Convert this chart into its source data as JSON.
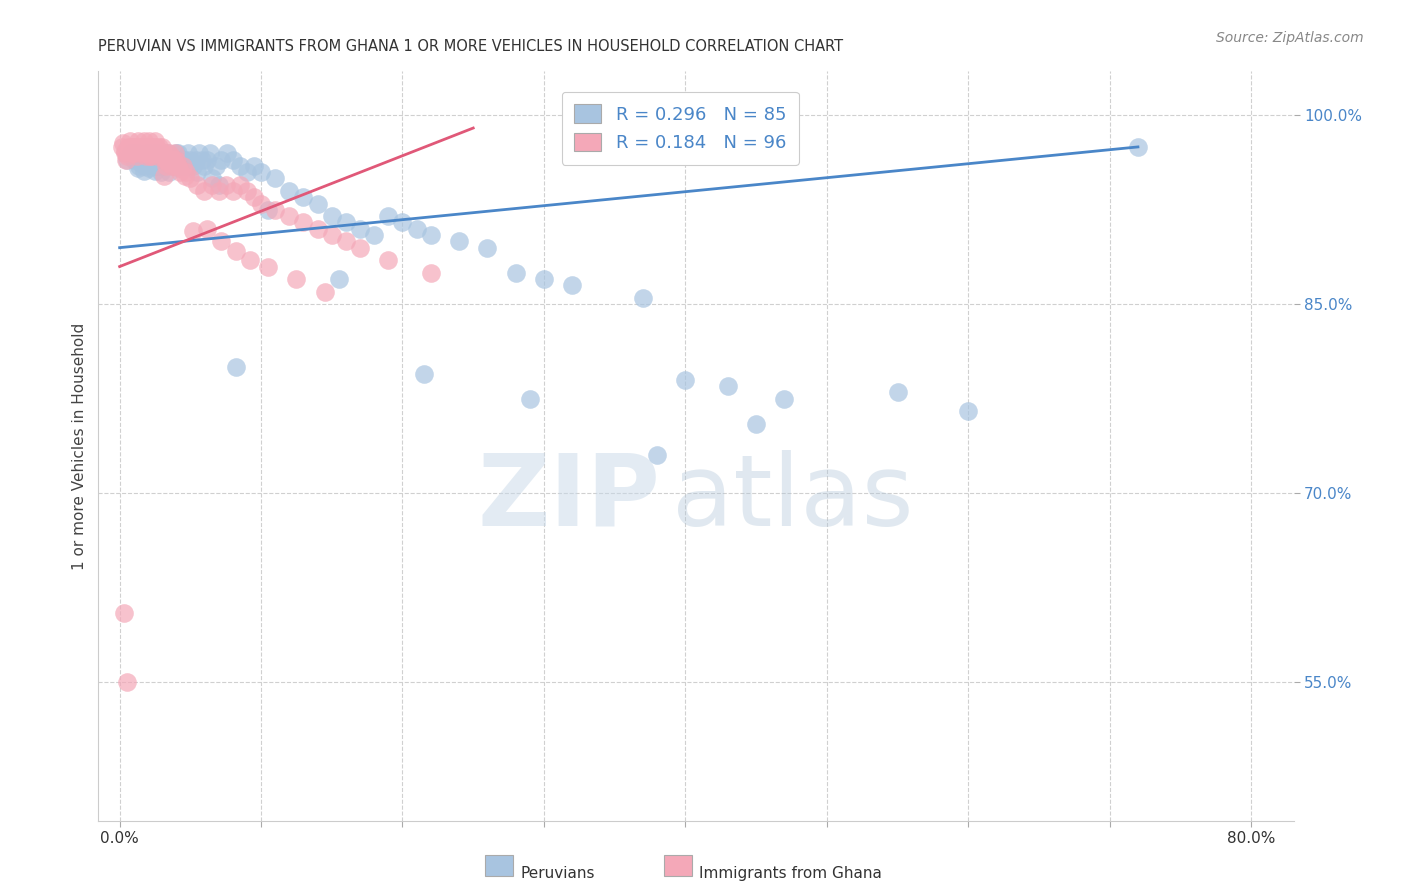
{
  "title": "PERUVIAN VS IMMIGRANTS FROM GHANA 1 OR MORE VEHICLES IN HOUSEHOLD CORRELATION CHART",
  "source": "Source: ZipAtlas.com",
  "ylabel": "1 or more Vehicles in Household",
  "xlim": [
    -1.5,
    83
  ],
  "ylim": [
    0.44,
    1.035
  ],
  "peruvian_R": 0.296,
  "peruvian_N": 85,
  "ghana_R": 0.184,
  "ghana_N": 96,
  "blue_color": "#a8c4e0",
  "pink_color": "#f4a8b8",
  "blue_line_color": "#4a86c8",
  "pink_line_color": "#e05878",
  "legend_label_1": "Peruvians",
  "legend_label_2": "Immigrants from Ghana",
  "grid_color": "#d0d0d0",
  "x_tick_positions": [
    0,
    10,
    20,
    30,
    40,
    50,
    60,
    70,
    80
  ],
  "y_tick_positions": [
    0.55,
    0.7,
    0.85,
    1.0
  ],
  "y_tick_labels": [
    "55.0%",
    "70.0%",
    "85.0%",
    "100.0%"
  ],
  "blue_trend_x": [
    0,
    72
  ],
  "blue_trend_y": [
    0.895,
    0.975
  ],
  "pink_trend_x": [
    0,
    25
  ],
  "pink_trend_y": [
    0.88,
    0.99
  ],
  "blue_x": [
    0.5,
    0.8,
    1.0,
    1.2,
    1.4,
    1.6,
    1.8,
    2.0,
    2.2,
    2.4,
    2.6,
    2.8,
    3.0,
    3.2,
    3.4,
    3.6,
    3.8,
    4.0,
    4.2,
    4.4,
    4.6,
    4.8,
    5.0,
    5.2,
    5.4,
    5.6,
    5.8,
    6.0,
    6.2,
    6.4,
    6.8,
    7.2,
    7.6,
    8.0,
    8.5,
    9.0,
    9.5,
    10.0,
    11.0,
    12.0,
    13.0,
    14.0,
    15.0,
    16.0,
    17.0,
    18.0,
    19.0,
    20.0,
    21.0,
    22.0,
    24.0,
    26.0,
    28.0,
    30.0,
    32.0,
    37.0,
    40.0,
    43.0,
    47.0,
    55.0,
    60.0,
    72.0,
    1.3,
    1.5,
    1.7,
    2.1,
    2.3,
    2.5,
    2.7,
    2.9,
    3.1,
    3.5,
    4.1,
    4.5,
    4.9,
    5.5,
    6.5,
    7.0,
    8.2,
    10.5,
    15.5,
    21.5,
    29.0,
    38.0,
    45.0
  ],
  "blue_y": [
    0.965,
    0.97,
    0.965,
    0.97,
    0.96,
    0.965,
    0.96,
    0.97,
    0.965,
    0.96,
    0.97,
    0.965,
    0.96,
    0.965,
    0.97,
    0.965,
    0.96,
    0.97,
    0.965,
    0.96,
    0.965,
    0.97,
    0.965,
    0.96,
    0.965,
    0.97,
    0.965,
    0.96,
    0.965,
    0.97,
    0.96,
    0.965,
    0.97,
    0.965,
    0.96,
    0.955,
    0.96,
    0.955,
    0.95,
    0.94,
    0.935,
    0.93,
    0.92,
    0.915,
    0.91,
    0.905,
    0.92,
    0.915,
    0.91,
    0.905,
    0.9,
    0.895,
    0.875,
    0.87,
    0.865,
    0.855,
    0.79,
    0.785,
    0.775,
    0.78,
    0.765,
    0.975,
    0.958,
    0.962,
    0.956,
    0.958,
    0.962,
    0.956,
    0.96,
    0.955,
    0.96,
    0.955,
    0.97,
    0.965,
    0.96,
    0.955,
    0.95,
    0.945,
    0.8,
    0.925,
    0.87,
    0.795,
    0.775,
    0.73,
    0.755
  ],
  "pink_x": [
    0.2,
    0.4,
    0.6,
    0.7,
    0.8,
    0.9,
    1.0,
    1.1,
    1.2,
    1.3,
    1.4,
    1.5,
    1.6,
    1.7,
    1.8,
    1.9,
    2.0,
    2.1,
    2.2,
    2.3,
    2.4,
    2.5,
    2.6,
    2.7,
    2.8,
    2.9,
    3.0,
    3.1,
    3.2,
    3.3,
    3.4,
    3.5,
    3.6,
    3.7,
    3.8,
    3.9,
    4.0,
    4.1,
    4.3,
    4.5,
    4.7,
    5.0,
    5.5,
    6.0,
    6.5,
    7.0,
    7.5,
    8.0,
    8.5,
    9.0,
    9.5,
    10.0,
    11.0,
    12.0,
    13.0,
    14.0,
    15.0,
    16.0,
    0.35,
    0.55,
    0.85,
    1.05,
    1.25,
    1.45,
    1.65,
    1.85,
    2.05,
    2.25,
    2.45,
    2.65,
    2.85,
    3.05,
    3.25,
    3.45,
    3.65,
    3.85,
    4.2,
    4.6,
    5.2,
    6.2,
    7.2,
    8.2,
    9.2,
    10.5,
    12.5,
    14.5,
    0.3,
    0.5,
    17.0,
    19.0,
    22.0,
    0.45,
    2.15,
    3.15,
    0.25
  ],
  "pink_y": [
    0.975,
    0.97,
    0.975,
    0.98,
    0.975,
    0.97,
    0.975,
    0.97,
    0.975,
    0.98,
    0.975,
    0.97,
    0.975,
    0.98,
    0.975,
    0.97,
    0.975,
    0.98,
    0.975,
    0.97,
    0.975,
    0.98,
    0.975,
    0.97,
    0.975,
    0.97,
    0.975,
    0.97,
    0.965,
    0.96,
    0.965,
    0.97,
    0.965,
    0.96,
    0.965,
    0.97,
    0.965,
    0.96,
    0.955,
    0.96,
    0.955,
    0.95,
    0.945,
    0.94,
    0.945,
    0.94,
    0.945,
    0.94,
    0.945,
    0.94,
    0.935,
    0.93,
    0.925,
    0.92,
    0.915,
    0.91,
    0.905,
    0.9,
    0.972,
    0.968,
    0.972,
    0.975,
    0.968,
    0.972,
    0.975,
    0.968,
    0.972,
    0.968,
    0.972,
    0.968,
    0.972,
    0.968,
    0.965,
    0.962,
    0.968,
    0.965,
    0.958,
    0.952,
    0.908,
    0.91,
    0.9,
    0.892,
    0.885,
    0.88,
    0.87,
    0.86,
    0.605,
    0.55,
    0.895,
    0.885,
    0.875,
    0.965,
    0.968,
    0.952,
    0.978
  ]
}
